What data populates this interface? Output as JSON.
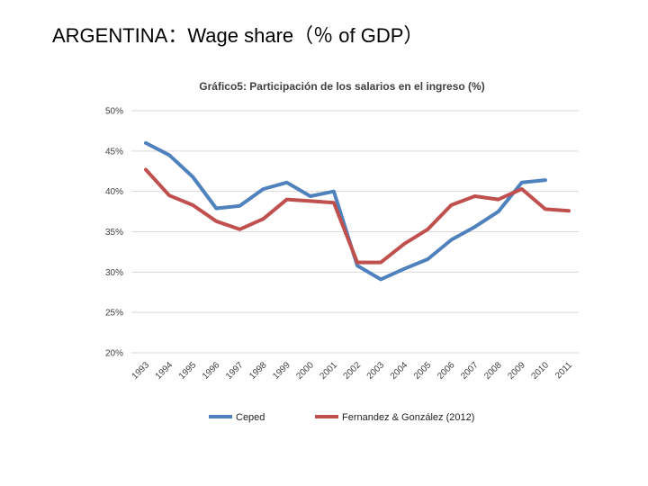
{
  "slide": {
    "title": "ARGENTINA：Wage share（％ of GDP）"
  },
  "chart_data": {
    "type": "line",
    "title": "Gráfico5: Participación de los salarios en el ingreso (%)",
    "xlabel": "",
    "ylabel": "",
    "ylim": [
      20,
      50
    ],
    "yticks": [
      20,
      25,
      30,
      35,
      40,
      45,
      50
    ],
    "ytick_labels": [
      "20%",
      "25%",
      "30%",
      "35%",
      "40%",
      "45%",
      "50%"
    ],
    "grid": true,
    "legend_position": "bottom",
    "categories": [
      "1993",
      "1994",
      "1995",
      "1996",
      "1997",
      "1998",
      "1999",
      "2000",
      "2001",
      "2002",
      "2003",
      "2004",
      "2005",
      "2006",
      "2007",
      "2008",
      "2009",
      "2010",
      "2011"
    ],
    "series": [
      {
        "name": "Ceped",
        "color": "#4F81BD",
        "values": [
          46.0,
          44.5,
          41.8,
          37.9,
          38.2,
          40.3,
          41.1,
          39.4,
          40.0,
          30.8,
          29.1,
          30.4,
          31.6,
          34.0,
          35.6,
          37.5,
          41.1,
          41.4,
          null
        ]
      },
      {
        "name": "Fernandez & González (2012)",
        "color": "#C0504D",
        "values": [
          42.7,
          39.5,
          38.3,
          36.3,
          35.3,
          36.6,
          39.0,
          38.8,
          38.6,
          31.2,
          31.2,
          33.5,
          35.3,
          38.3,
          39.4,
          39.0,
          40.3,
          37.8,
          37.6
        ]
      }
    ]
  }
}
